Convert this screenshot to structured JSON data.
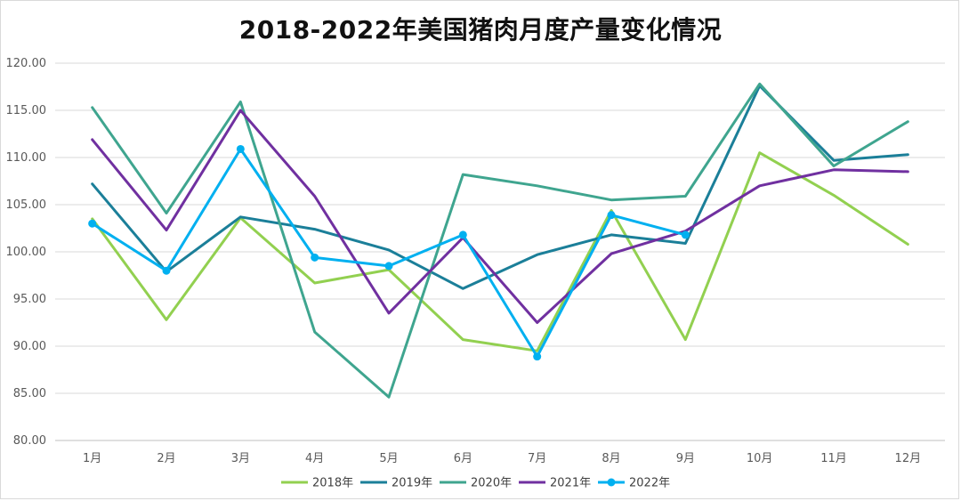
{
  "chart_data": {
    "type": "line",
    "title": "2018-2022年美国猪肉月度产量变化情况",
    "xlabel": "",
    "ylabel": "",
    "categories": [
      "1月",
      "2月",
      "3月",
      "4月",
      "5月",
      "6月",
      "7月",
      "8月",
      "9月",
      "10月",
      "11月",
      "12月"
    ],
    "ylim": [
      80,
      120
    ],
    "yticks": [
      "80.00",
      "85.00",
      "90.00",
      "95.00",
      "100.00",
      "105.00",
      "110.00",
      "115.00",
      "120.00"
    ],
    "grid": "horizontal",
    "legend_position": "bottom",
    "series": [
      {
        "name": "2018年",
        "color": "#92d050",
        "marker": false,
        "values": [
          103.5,
          92.8,
          103.6,
          96.7,
          98.1,
          90.7,
          89.5,
          104.4,
          90.7,
          110.5,
          106.0,
          100.8
        ]
      },
      {
        "name": "2019年",
        "color": "#1b7f99",
        "marker": false,
        "values": [
          107.2,
          97.9,
          103.7,
          102.4,
          100.2,
          96.1,
          99.7,
          101.8,
          100.9,
          117.6,
          109.7,
          110.3
        ]
      },
      {
        "name": "2020年",
        "color": "#3fa58f",
        "marker": false,
        "values": [
          115.3,
          104.1,
          115.9,
          91.5,
          84.6,
          108.2,
          107.0,
          105.5,
          105.9,
          117.8,
          109.1,
          113.8
        ]
      },
      {
        "name": "2021年",
        "color": "#7030a0",
        "marker": false,
        "values": [
          111.9,
          102.3,
          115.0,
          105.9,
          93.5,
          101.5,
          92.5,
          99.8,
          102.2,
          107.0,
          108.7,
          108.5
        ]
      },
      {
        "name": "2022年",
        "color": "#00b0f0",
        "marker": true,
        "values": [
          103.0,
          98.0,
          110.9,
          99.4,
          98.5,
          101.8,
          88.9,
          103.9,
          101.8,
          null,
          null,
          null
        ]
      }
    ]
  }
}
